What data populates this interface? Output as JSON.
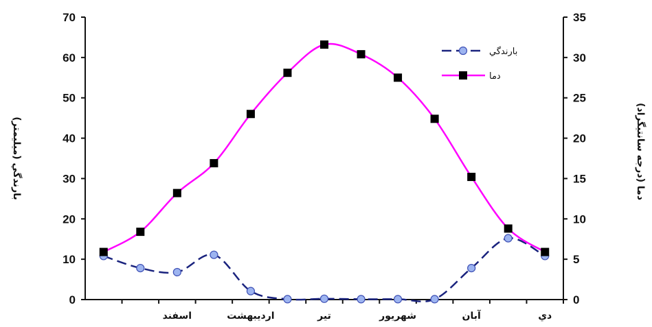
{
  "chart_data": {
    "type": "line",
    "ylabel": "بارندگي (ميليمتر)",
    "y2label": "دما (درجه سانتيگراد)",
    "ylim": [
      0,
      70
    ],
    "y2lim": [
      0,
      35
    ],
    "yticks": [
      0,
      10,
      20,
      30,
      40,
      50,
      60,
      70
    ],
    "y2ticks": [
      0,
      5,
      10,
      15,
      20,
      25,
      30,
      35
    ],
    "x": [
      1,
      2,
      3,
      4,
      5,
      6,
      7,
      8,
      9,
      10,
      11,
      12,
      13
    ],
    "xlim": [
      0.5,
      13.5
    ],
    "xtick_labels": [
      {
        "x": 3,
        "label": "اسفند"
      },
      {
        "x": 5,
        "label": "ارديبهشت"
      },
      {
        "x": 7,
        "label": "تير"
      },
      {
        "x": 9,
        "label": "شهريور"
      },
      {
        "x": 11,
        "label": "آبان"
      },
      {
        "x": 13,
        "label": "دي"
      }
    ],
    "series": [
      {
        "name": "بارندگي",
        "axis": "left",
        "style": "dashed",
        "marker": "circle",
        "color": "#1a237e",
        "marker_color": "#9db4f0",
        "values": [
          10.8,
          7.8,
          6.8,
          11.1,
          2.1,
          0.1,
          0.2,
          0.1,
          0.1,
          0.1,
          7.8,
          15.2,
          10.8
        ]
      },
      {
        "name": "دما",
        "axis": "right",
        "style": "solid",
        "marker": "square",
        "color": "#ff00ff",
        "marker_color": "#000000",
        "values": [
          5.9,
          8.4,
          13.2,
          16.9,
          23.0,
          28.1,
          31.6,
          30.4,
          27.5,
          22.4,
          15.2,
          8.8,
          5.9
        ]
      }
    ],
    "legend_position": "top-right",
    "grid": false
  }
}
